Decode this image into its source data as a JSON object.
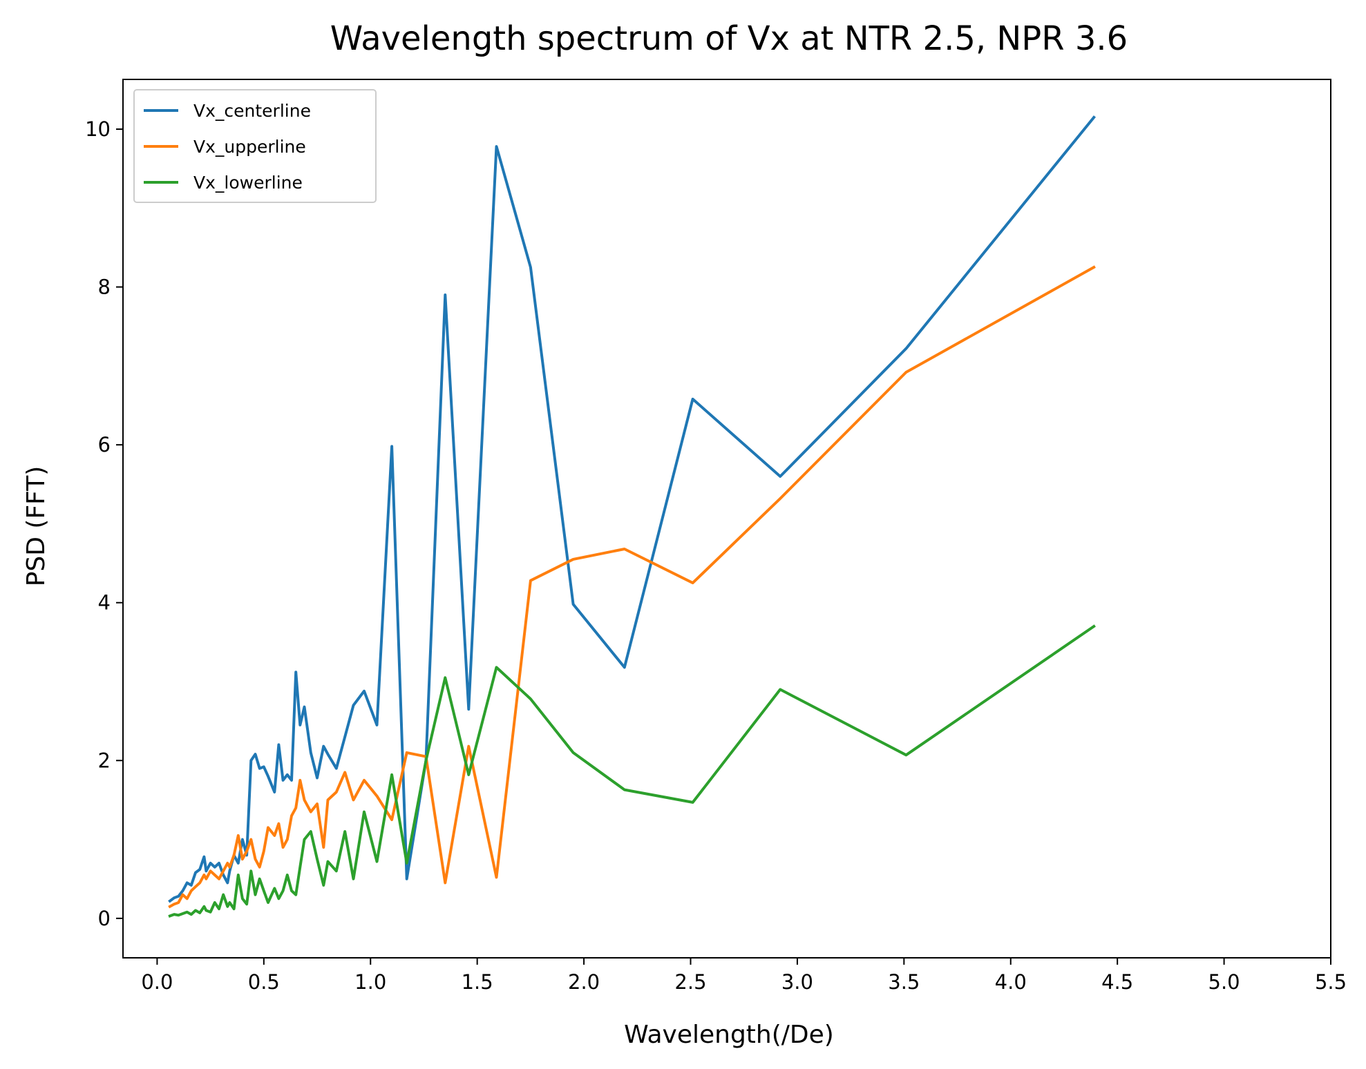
{
  "chart_data": {
    "type": "line",
    "title": "Wavelength spectrum of Vx at NTR 2.5, NPR 3.6",
    "xlabel": "Wavelength(/De)",
    "ylabel": "PSD (FFT)",
    "xlim": [
      -0.16,
      5.5
    ],
    "ylim": [
      -0.5,
      10.63
    ],
    "xticks": [
      0.0,
      0.5,
      1.0,
      1.5,
      2.0,
      2.5,
      3.0,
      3.5,
      4.0,
      4.5,
      5.0,
      5.5
    ],
    "xtick_labels": [
      "0.0",
      "0.5",
      "1.0",
      "1.5",
      "2.0",
      "2.5",
      "3.0",
      "3.5",
      "4.0",
      "4.5",
      "5.0",
      "5.5"
    ],
    "yticks": [
      0,
      2,
      4,
      6,
      8,
      10
    ],
    "ytick_labels": [
      "0",
      "2",
      "4",
      "6",
      "8",
      "10"
    ],
    "grid": false,
    "legend_position": "top-left",
    "series": [
      {
        "name": "Vx_centerline",
        "color": "#1f77b4",
        "x": [
          0.06,
          0.08,
          0.1,
          0.12,
          0.14,
          0.16,
          0.18,
          0.2,
          0.22,
          0.23,
          0.25,
          0.27,
          0.29,
          0.31,
          0.33,
          0.34,
          0.36,
          0.38,
          0.4,
          0.42,
          0.44,
          0.46,
          0.48,
          0.5,
          0.52,
          0.55,
          0.57,
          0.59,
          0.61,
          0.63,
          0.65,
          0.67,
          0.69,
          0.72,
          0.75,
          0.78,
          0.8,
          0.84,
          0.88,
          0.92,
          0.97,
          1.03,
          1.1,
          1.17,
          1.26,
          1.35,
          1.46,
          1.59,
          1.75,
          1.95,
          2.19,
          2.51,
          2.92,
          3.51,
          4.39
        ],
        "y": [
          0.22,
          0.26,
          0.28,
          0.35,
          0.45,
          0.42,
          0.58,
          0.62,
          0.78,
          0.6,
          0.7,
          0.65,
          0.7,
          0.55,
          0.45,
          0.6,
          0.8,
          0.7,
          1.0,
          0.8,
          2.0,
          2.08,
          1.9,
          1.92,
          1.8,
          1.6,
          2.2,
          1.75,
          1.82,
          1.75,
          3.12,
          2.45,
          2.68,
          2.1,
          1.78,
          2.18,
          2.08,
          1.9,
          2.3,
          2.7,
          2.88,
          2.45,
          5.98,
          0.5,
          2.0,
          7.9,
          2.65,
          9.78,
          8.25,
          3.98,
          3.18,
          6.58,
          5.6,
          7.22,
          10.15
        ]
      },
      {
        "name": "Vx_upperline",
        "color": "#ff7f0e",
        "x": [
          0.06,
          0.08,
          0.1,
          0.12,
          0.14,
          0.16,
          0.18,
          0.2,
          0.22,
          0.23,
          0.25,
          0.27,
          0.29,
          0.31,
          0.33,
          0.34,
          0.36,
          0.38,
          0.4,
          0.42,
          0.44,
          0.46,
          0.48,
          0.5,
          0.52,
          0.55,
          0.57,
          0.59,
          0.61,
          0.63,
          0.65,
          0.67,
          0.69,
          0.72,
          0.75,
          0.78,
          0.8,
          0.84,
          0.88,
          0.92,
          0.97,
          1.03,
          1.1,
          1.17,
          1.26,
          1.35,
          1.46,
          1.59,
          1.75,
          1.95,
          2.19,
          2.51,
          2.92,
          3.51,
          4.39
        ],
        "y": [
          0.15,
          0.18,
          0.2,
          0.3,
          0.25,
          0.35,
          0.4,
          0.45,
          0.55,
          0.5,
          0.6,
          0.55,
          0.5,
          0.6,
          0.7,
          0.65,
          0.8,
          1.05,
          0.75,
          0.85,
          1.0,
          0.75,
          0.65,
          0.85,
          1.15,
          1.05,
          1.2,
          0.9,
          1.0,
          1.3,
          1.4,
          1.75,
          1.5,
          1.35,
          1.45,
          0.9,
          1.5,
          1.6,
          1.85,
          1.5,
          1.75,
          1.55,
          1.25,
          2.1,
          2.05,
          0.45,
          2.18,
          0.52,
          4.28,
          4.55,
          4.68,
          4.25,
          5.32,
          6.92,
          8.25
        ]
      },
      {
        "name": "Vx_lowerline",
        "color": "#2ca02c",
        "x": [
          0.06,
          0.08,
          0.1,
          0.12,
          0.14,
          0.16,
          0.18,
          0.2,
          0.22,
          0.23,
          0.25,
          0.27,
          0.29,
          0.31,
          0.33,
          0.34,
          0.36,
          0.38,
          0.4,
          0.42,
          0.44,
          0.46,
          0.48,
          0.5,
          0.52,
          0.55,
          0.57,
          0.59,
          0.61,
          0.63,
          0.65,
          0.67,
          0.69,
          0.72,
          0.75,
          0.78,
          0.8,
          0.84,
          0.88,
          0.92,
          0.97,
          1.03,
          1.1,
          1.17,
          1.26,
          1.35,
          1.46,
          1.59,
          1.75,
          1.95,
          2.19,
          2.51,
          2.92,
          3.51,
          4.39
        ],
        "y": [
          0.03,
          0.05,
          0.04,
          0.06,
          0.08,
          0.05,
          0.1,
          0.07,
          0.15,
          0.1,
          0.08,
          0.2,
          0.12,
          0.3,
          0.15,
          0.2,
          0.12,
          0.55,
          0.25,
          0.18,
          0.6,
          0.3,
          0.5,
          0.35,
          0.2,
          0.38,
          0.25,
          0.35,
          0.55,
          0.35,
          0.3,
          0.65,
          1.0,
          1.1,
          0.75,
          0.42,
          0.72,
          0.6,
          1.1,
          0.5,
          1.35,
          0.72,
          1.82,
          0.7,
          2.0,
          3.05,
          1.82,
          3.18,
          2.78,
          2.1,
          1.63,
          1.47,
          2.9,
          2.07,
          3.7
        ]
      }
    ]
  }
}
